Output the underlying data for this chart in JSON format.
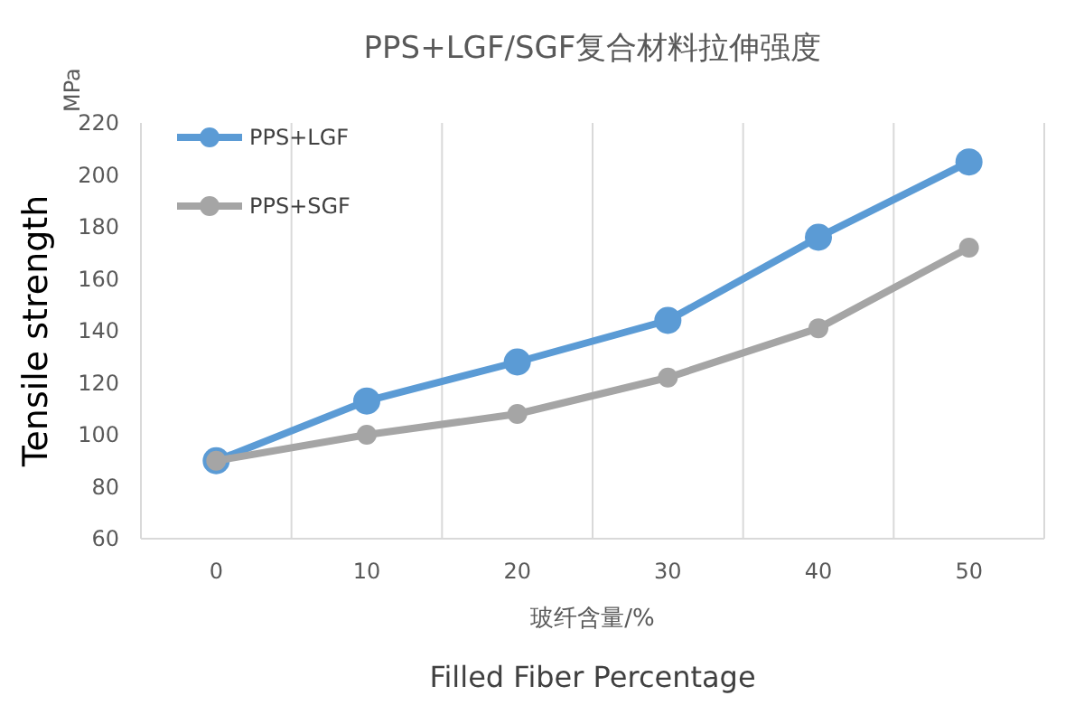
{
  "chart_data": {
    "type": "line",
    "title": "PPS+LGF/SGF复合材料拉伸强度",
    "xlabel": "玻纤含量/%",
    "ylabel": "Tensile strength",
    "annotations": [
      "MPa",
      "Filled Fiber Percentage"
    ],
    "categories": [
      "0",
      "10",
      "20",
      "30",
      "40",
      "50"
    ],
    "series": [
      {
        "name": "PPS+LGF",
        "color": "#5b9bd5",
        "values": [
          90,
          113,
          128,
          144,
          176,
          205
        ]
      },
      {
        "name": "PPS+SGF",
        "color": "#a5a5a5",
        "values": [
          90,
          100,
          108,
          122,
          141,
          172
        ]
      }
    ],
    "ylim": [
      60,
      220
    ],
    "yticks": [
      60,
      80,
      100,
      120,
      140,
      160,
      180,
      200,
      220
    ],
    "grid": "x",
    "legend": "top left",
    "marker": "circle",
    "line_style": "solid"
  }
}
